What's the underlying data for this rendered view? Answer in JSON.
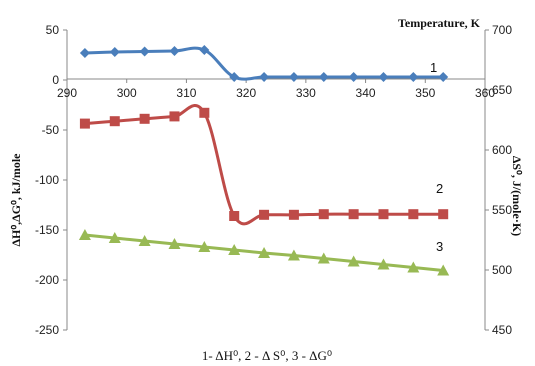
{
  "chart_data": {
    "type": "line",
    "title": "",
    "x_axis": {
      "label": "Temperature, K",
      "range": [
        290,
        360
      ],
      "ticks": [
        "290",
        "300",
        "310",
        "320",
        "330",
        "340",
        "350",
        "360"
      ]
    },
    "y_left": {
      "label": "ΔH⁰,ΔG⁰, kJ/mole",
      "range": [
        -250,
        50
      ],
      "ticks": [
        "50",
        "0",
        "-50",
        "-100",
        "-150",
        "-200",
        "-250"
      ]
    },
    "y_right": {
      "label": "ΔS⁰, J/(mole·K)",
      "range": [
        450,
        700
      ],
      "ticks": [
        "700",
        "650",
        "600",
        "550",
        "500",
        "450"
      ]
    },
    "caption": "1- ΔH⁰, 2 - Δ S⁰, 3 - ΔG⁰",
    "series": [
      {
        "name": "1",
        "axis": "left",
        "color": "#4a7ebb",
        "marker": "diamond",
        "x": [
          293,
          298,
          303,
          308,
          313,
          318,
          323,
          328,
          333,
          338,
          343,
          348,
          353
        ],
        "y": [
          27,
          28,
          28.5,
          29,
          30,
          3,
          3,
          3,
          3,
          3,
          3,
          3,
          3
        ]
      },
      {
        "name": "2",
        "axis": "right",
        "color": "#be4b48",
        "marker": "square",
        "x": [
          293,
          298,
          303,
          308,
          313,
          318,
          323,
          328,
          333,
          338,
          343,
          348,
          353
        ],
        "y": [
          622,
          624,
          626,
          628,
          631,
          545,
          546,
          546,
          546.5,
          546.5,
          546.5,
          546.5,
          546.5
        ]
      },
      {
        "name": "3",
        "axis": "left",
        "color": "#98b954",
        "marker": "triangle",
        "x": [
          293,
          298,
          303,
          308,
          313,
          318,
          323,
          328,
          333,
          338,
          343,
          348,
          353
        ],
        "y": [
          -155,
          -158,
          -161,
          -164,
          -167,
          -170,
          -173,
          -175.5,
          -178.5,
          -181.5,
          -184.5,
          -187.5,
          -190.5
        ]
      }
    ],
    "legend": "none"
  }
}
